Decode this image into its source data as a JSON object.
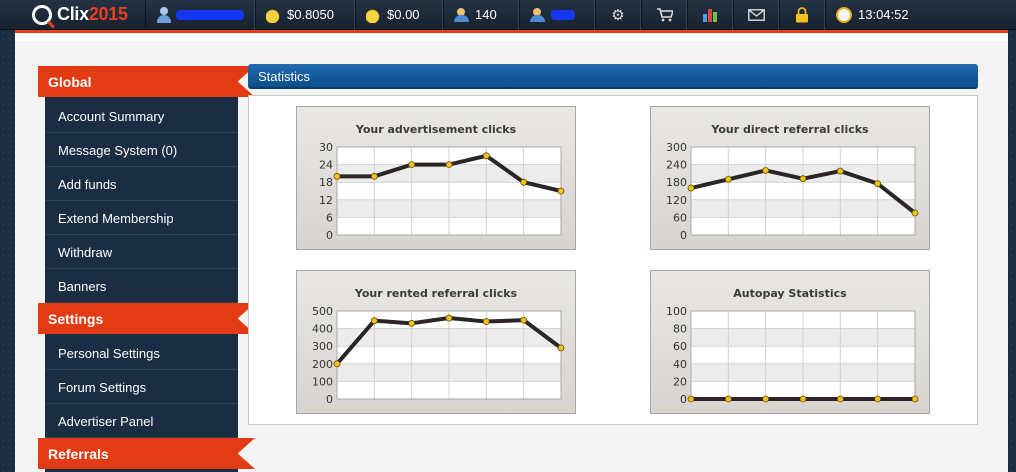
{
  "topbar": {
    "brand": "Clix",
    "brand_year": "2015",
    "balance": "$0.8050",
    "purchase_balance": "$0.00",
    "rented_referrals": "140",
    "time": "13:04:52"
  },
  "sidebar": {
    "sections": [
      {
        "title": "Global",
        "items": [
          "Account Summary",
          "Message System (0)",
          "Add funds",
          "Extend Membership",
          "Withdraw",
          "Banners"
        ]
      },
      {
        "title": "Settings",
        "items": [
          "Personal Settings",
          "Forum Settings",
          "Advertiser Panel"
        ]
      },
      {
        "title": "Referrals",
        "items": []
      }
    ]
  },
  "statistics": {
    "title": "Statistics"
  },
  "colors": {
    "accent": "#e33b13",
    "header_blue": "#0c4f8c",
    "sidebar_bg": "#1a2d42",
    "line": "#2b2524",
    "marker": "#f2c21b"
  },
  "icons": [
    "user-icon",
    "coins-icon",
    "coins-icon",
    "rented-referral-icon",
    "direct-referral-icon",
    "gear-icon",
    "cart-icon",
    "stats-icon",
    "mail-icon",
    "lock-icon",
    "alarm-clock-icon"
  ],
  "chart_data": [
    {
      "type": "line",
      "title": "Your advertisement clicks",
      "yticks": [
        "30",
        "24",
        "18",
        "12",
        "6",
        "0"
      ],
      "ylim": [
        0,
        30
      ],
      "values": [
        20,
        20,
        24,
        24,
        27,
        18,
        15
      ]
    },
    {
      "type": "line",
      "title": "Your direct referral clicks",
      "yticks": [
        "300",
        "240",
        "180",
        "120",
        "60",
        "0"
      ],
      "ylim": [
        0,
        300
      ],
      "values": [
        160,
        190,
        220,
        192,
        218,
        175,
        75
      ]
    },
    {
      "type": "line",
      "title": "Your rented referral clicks",
      "yticks": [
        "500",
        "400",
        "300",
        "200",
        "100",
        "0"
      ],
      "ylim": [
        0,
        500
      ],
      "values": [
        200,
        445,
        430,
        460,
        440,
        448,
        290
      ]
    },
    {
      "type": "line",
      "title": "Autopay Statistics",
      "yticks": [
        "100",
        "80",
        "60",
        "40",
        "20",
        "0"
      ],
      "ylim": [
        0,
        100
      ],
      "values": [
        0,
        0,
        0,
        0,
        0,
        0,
        0
      ]
    }
  ]
}
